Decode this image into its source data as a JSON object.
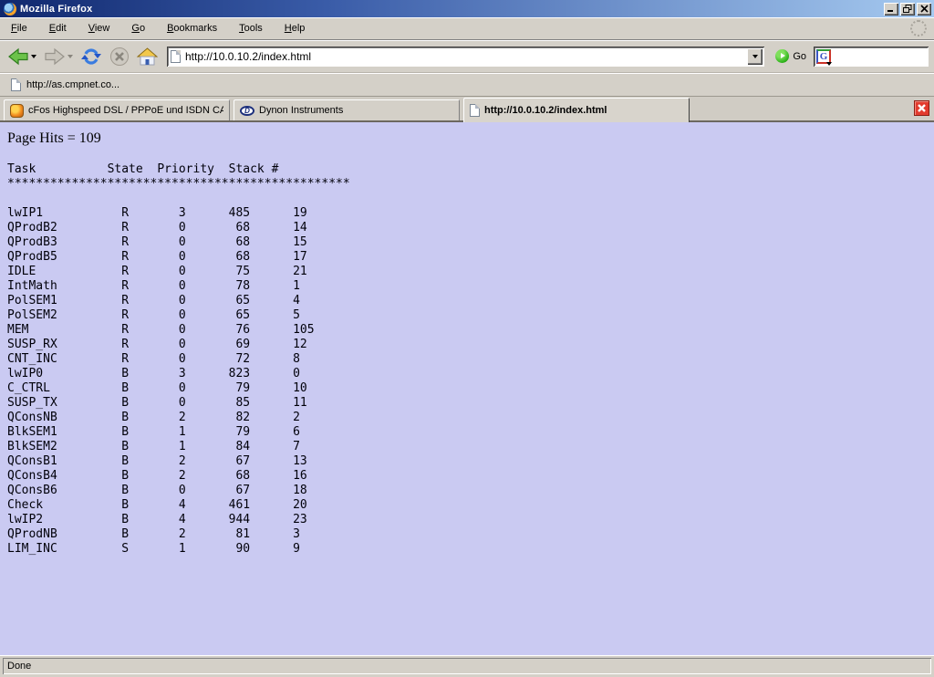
{
  "window": {
    "title": "Mozilla Firefox",
    "controls": {
      "minimize": "minimize",
      "restore": "restore",
      "close": "close"
    }
  },
  "menubar": {
    "items": [
      {
        "label": "File"
      },
      {
        "label": "Edit"
      },
      {
        "label": "View"
      },
      {
        "label": "Go"
      },
      {
        "label": "Bookmarks"
      },
      {
        "label": "Tools"
      },
      {
        "label": "Help"
      }
    ]
  },
  "navbar": {
    "back_icon": "back-arrow",
    "forward_icon": "forward-arrow",
    "reload_icon": "reload",
    "stop_icon": "stop",
    "home_icon": "home",
    "url": "http://10.0.10.2/index.html",
    "go_label": "Go",
    "search_engine": "G"
  },
  "bookmarks_bar": {
    "items": [
      {
        "label": "http://as.cmpnet.co..."
      }
    ]
  },
  "tabs": [
    {
      "label": "cFos Highspeed DSL / PPPoE und ISDN CAP...",
      "icon": "cfos",
      "active": false
    },
    {
      "label": "Dynon Instruments",
      "icon": "dynon",
      "active": false
    },
    {
      "label": "http://10.0.10.2/index.html",
      "icon": "page",
      "active": true
    }
  ],
  "content": {
    "page_hits": "Page Hits = 109",
    "table": {
      "type": "table",
      "columns": [
        "Task",
        "State",
        "Priority",
        "Stack",
        "#"
      ],
      "separator": "************************************************",
      "rows": [
        [
          "lwIP1",
          "R",
          "3",
          "485",
          "19"
        ],
        [
          "QProdB2",
          "R",
          "0",
          "68",
          "14"
        ],
        [
          "QProdB3",
          "R",
          "0",
          "68",
          "15"
        ],
        [
          "QProdB5",
          "R",
          "0",
          "68",
          "17"
        ],
        [
          "IDLE",
          "R",
          "0",
          "75",
          "21"
        ],
        [
          "IntMath",
          "R",
          "0",
          "78",
          "1"
        ],
        [
          "PolSEM1",
          "R",
          "0",
          "65",
          "4"
        ],
        [
          "PolSEM2",
          "R",
          "0",
          "65",
          "5"
        ],
        [
          "MEM",
          "R",
          "0",
          "76",
          "105"
        ],
        [
          "SUSP_RX",
          "R",
          "0",
          "69",
          "12"
        ],
        [
          "CNT_INC",
          "R",
          "0",
          "72",
          "8"
        ],
        [
          "lwIP0",
          "B",
          "3",
          "823",
          "0"
        ],
        [
          "C_CTRL",
          "B",
          "0",
          "79",
          "10"
        ],
        [
          "SUSP_TX",
          "B",
          "0",
          "85",
          "11"
        ],
        [
          "QConsNB",
          "B",
          "2",
          "82",
          "2"
        ],
        [
          "BlkSEM1",
          "B",
          "1",
          "79",
          "6"
        ],
        [
          "BlkSEM2",
          "B",
          "1",
          "84",
          "7"
        ],
        [
          "QConsB1",
          "B",
          "2",
          "67",
          "13"
        ],
        [
          "QConsB4",
          "B",
          "2",
          "68",
          "16"
        ],
        [
          "QConsB6",
          "B",
          "0",
          "67",
          "18"
        ],
        [
          "Check",
          "B",
          "4",
          "461",
          "20"
        ],
        [
          "lwIP2",
          "B",
          "4",
          "944",
          "23"
        ],
        [
          "QProdNB",
          "B",
          "2",
          "81",
          "3"
        ],
        [
          "LIM_INC",
          "S",
          "1",
          "90",
          "9"
        ]
      ]
    }
  },
  "statusbar": {
    "text": "Done"
  },
  "colors": {
    "page_background": "#cacaf2",
    "chrome_gray": "#d4d0c8",
    "titlebar_left": "#10286e",
    "titlebar_right": "#a6caf0",
    "tab_close_red": "#e23b2e",
    "back_green": "#6cc24a",
    "reload_blue": "#3a7ce0"
  }
}
